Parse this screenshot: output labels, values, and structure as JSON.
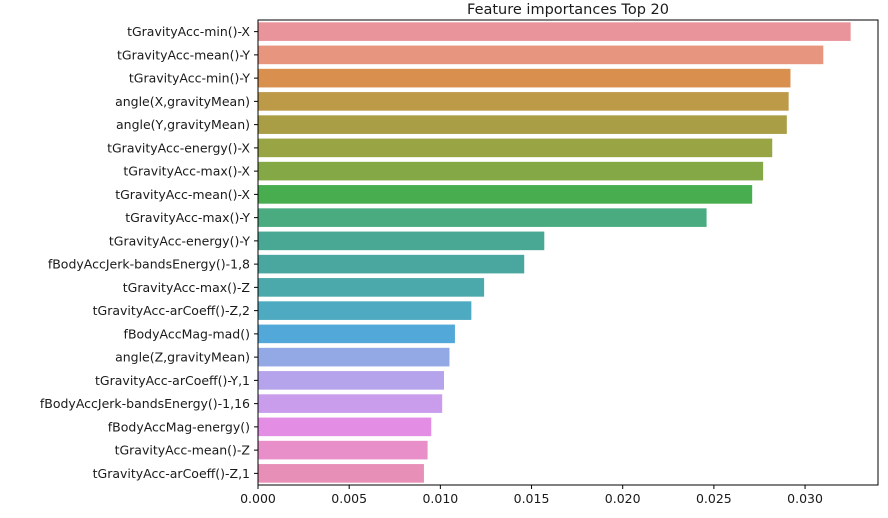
{
  "chart_data": {
    "type": "bar",
    "orientation": "horizontal",
    "title": "Feature importances Top 20",
    "xlabel": "",
    "ylabel": "",
    "xlim": [
      0,
      0.034
    ],
    "grid": false,
    "x_ticks": [
      "0.000",
      "0.005",
      "0.010",
      "0.015",
      "0.020",
      "0.025",
      "0.030"
    ],
    "x_tick_values": [
      0,
      0.005,
      0.01,
      0.015,
      0.02,
      0.025,
      0.03
    ],
    "categories": [
      "tGravityAcc-min()-X",
      "tGravityAcc-mean()-Y",
      "tGravityAcc-min()-Y",
      "angle(X,gravityMean)",
      "angle(Y,gravityMean)",
      "tGravityAcc-energy()-X",
      "tGravityAcc-max()-X",
      "tGravityAcc-mean()-X",
      "tGravityAcc-max()-Y",
      "tGravityAcc-energy()-Y",
      "fBodyAccJerk-bandsEnergy()-1,8",
      "tGravityAcc-max()-Z",
      "tGravityAcc-arCoeff()-Z,2",
      "fBodyAccMag-mad()",
      "angle(Z,gravityMean)",
      "tGravityAcc-arCoeff()-Y,1",
      "fBodyAccJerk-bandsEnergy()-1,16",
      "fBodyAccMag-energy()",
      "tGravityAcc-mean()-Z",
      "tGravityAcc-arCoeff()-Z,1"
    ],
    "values": [
      0.0325,
      0.031,
      0.0292,
      0.0291,
      0.029,
      0.0282,
      0.0277,
      0.0271,
      0.0246,
      0.0157,
      0.0146,
      0.0124,
      0.0117,
      0.0108,
      0.0105,
      0.0102,
      0.0101,
      0.0095,
      0.0093,
      0.0091
    ],
    "colors": [
      "#e8949a",
      "#e8957f",
      "#d98f4e",
      "#bd9a48",
      "#a99e45",
      "#99a445",
      "#84a846",
      "#48ad4f",
      "#4aab81",
      "#49a893",
      "#4aa79f",
      "#4ba8ab",
      "#4eaac0",
      "#52a8d8",
      "#92a9e6",
      "#b5a3ec",
      "#c99cec",
      "#e38de4",
      "#e88fca",
      "#e78fb6"
    ]
  }
}
